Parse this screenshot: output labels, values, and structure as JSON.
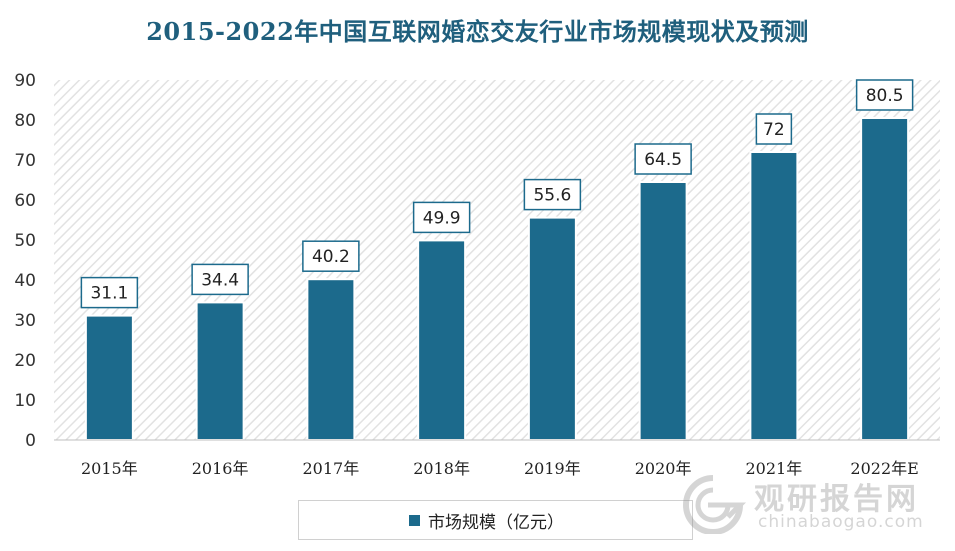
{
  "chart_data": {
    "type": "bar",
    "title": "2015-2022年中国互联网婚恋交友行业市场规模现状及预测",
    "categories": [
      "2015年",
      "2016年",
      "2017年",
      "2018年",
      "2019年",
      "2020年",
      "2021年",
      "2022年E"
    ],
    "series": [
      {
        "name": "市场规模（亿元）",
        "values": [
          31.1,
          34.4,
          40.2,
          49.9,
          55.6,
          64.5,
          72,
          80.5
        ]
      }
    ],
    "y_ticks": [
      "0",
      "10",
      "20",
      "30",
      "40",
      "50",
      "60",
      "70",
      "80",
      "90"
    ],
    "ylim": [
      0,
      90
    ],
    "grid": false,
    "legend_position": "bottom",
    "colors": {
      "bar": "#1c6a8c",
      "title": "#1f5f7d",
      "plot_background_hatch": "#e2e2e2"
    }
  },
  "watermark": {
    "text_cn": "观研报告网",
    "text_en": "chinabaogao.com"
  }
}
